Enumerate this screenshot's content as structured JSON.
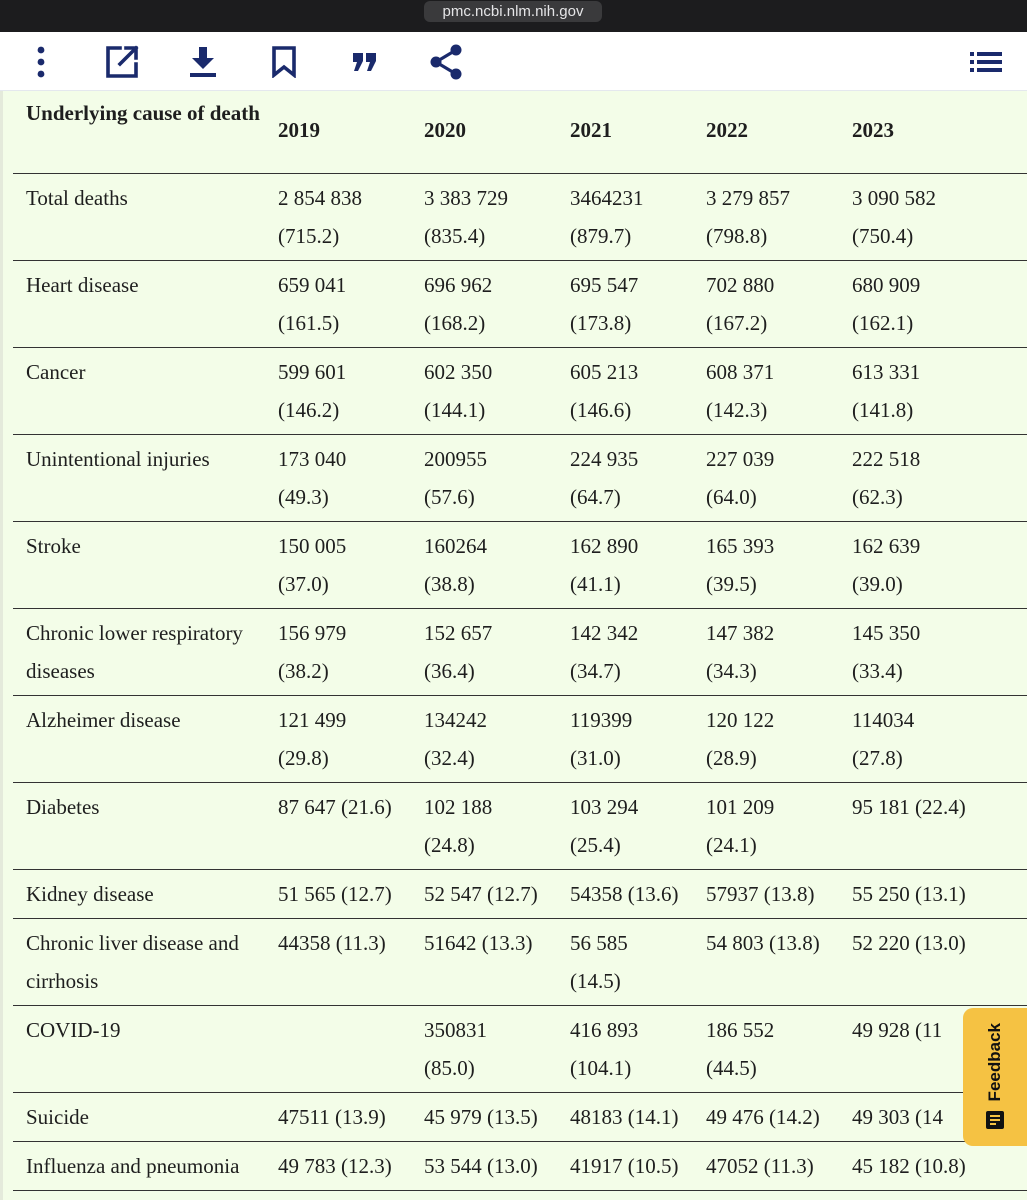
{
  "browser": {
    "url": "pmc.ncbi.nlm.nih.gov"
  },
  "toolbar": {
    "icons": [
      "more-vertical-icon",
      "open-external-icon",
      "download-icon",
      "bookmark-icon",
      "quote-icon",
      "share-icon",
      "list-menu-icon"
    ],
    "accent_color": "#1a2a6c"
  },
  "table": {
    "headers": [
      "Underlying cause of death",
      "2019",
      "2020",
      "2021",
      "2022",
      "2023"
    ],
    "rows": [
      {
        "cause": "Total deaths",
        "values": [
          "2 854 838\n(715.2)",
          "3 383 729\n(835.4)",
          "3464231\n(879.7)",
          "3 279 857\n(798.8)",
          "3 090 582\n(750.4)"
        ]
      },
      {
        "cause": "Heart disease",
        "values": [
          "659 041\n(161.5)",
          "696 962\n(168.2)",
          "695 547\n(173.8)",
          "702 880\n(167.2)",
          "680 909\n(162.1)"
        ]
      },
      {
        "cause": "Cancer",
        "values": [
          "599 601\n(146.2)",
          "602 350\n(144.1)",
          "605 213\n(146.6)",
          "608 371\n(142.3)",
          "613 331\n(141.8)"
        ]
      },
      {
        "cause": "Unintentional injuries",
        "values": [
          "173 040\n(49.3)",
          "200955\n(57.6)",
          "224 935\n(64.7)",
          "227 039\n(64.0)",
          "222 518\n(62.3)"
        ]
      },
      {
        "cause": "Stroke",
        "values": [
          "150 005\n(37.0)",
          "160264\n(38.8)",
          "162 890\n(41.1)",
          "165 393\n(39.5)",
          "162 639\n(39.0)"
        ]
      },
      {
        "cause": "Chronic lower respiratory\ndiseases",
        "values": [
          "156 979\n(38.2)",
          "152 657\n(36.4)",
          "142 342\n(34.7)",
          "147 382\n(34.3)",
          "145 350\n(33.4)"
        ]
      },
      {
        "cause": "Alzheimer disease",
        "values": [
          "121 499\n(29.8)",
          "134242\n(32.4)",
          "119399\n(31.0)",
          "120 122\n(28.9)",
          "114034\n(27.8)"
        ]
      },
      {
        "cause": "Diabetes",
        "values": [
          "87 647 (21.6)",
          "102 188\n(24.8)",
          "103 294\n(25.4)",
          "101 209\n(24.1)",
          "95 181 (22.4)"
        ]
      },
      {
        "cause": "Kidney disease",
        "values": [
          "51 565 (12.7)",
          "52 547 (12.7)",
          "54358 (13.6)",
          "57937 (13.8)",
          "55 250 (13.1)"
        ]
      },
      {
        "cause": "Chronic liver disease and\ncirrhosis",
        "values": [
          "44358 (11.3)",
          "51642 (13.3)",
          "56 585\n(14.5)",
          "54 803 (13.8)",
          "52 220 (13.0)"
        ]
      },
      {
        "cause": "COVID-19",
        "values": [
          "",
          "350831\n(85.0)",
          "416 893\n(104.1)",
          "186 552\n(44.5)",
          "49 928 (11"
        ]
      },
      {
        "cause": "Suicide",
        "values": [
          "47511 (13.9)",
          "45 979 (13.5)",
          "48183 (14.1)",
          "49 476 (14.2)",
          "49 303 (14"
        ]
      },
      {
        "cause": "Influenza and pneumonia",
        "values": [
          "49 783 (12.3)",
          "53 544 (13.0)",
          "41917 (10.5)",
          "47052 (11.3)",
          "45 182 (10.8)"
        ]
      }
    ]
  },
  "feedback": {
    "label": "Feedback",
    "color": "#f5c243"
  }
}
